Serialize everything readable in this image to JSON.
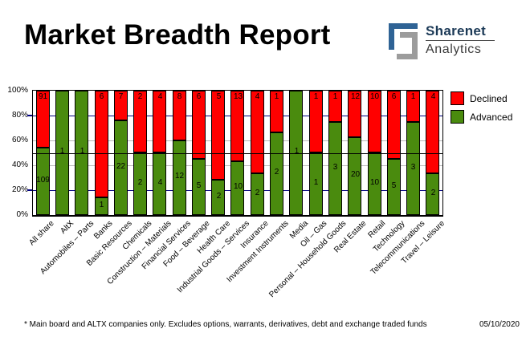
{
  "header": {
    "title": "Market Breadth Report",
    "logo": {
      "line1": "Sharenet",
      "line2": "Analytics",
      "icon_blue": "#2f6395",
      "icon_gray": "#9c9c9c"
    }
  },
  "chart_data": {
    "type": "bar",
    "variant": "stacked-100-percent-column",
    "categories": [
      "All share",
      "AltX",
      "Automobiles – Parts",
      "Banks",
      "Basic Resources",
      "Chemicals",
      "Construction – Materials",
      "Financial Services",
      "Food – Beverage",
      "Health Care",
      "Industrial Goods – Services",
      "Insurance",
      "Investment Instruments",
      "Media",
      "Oil – Gas",
      "Personal – Household Goods",
      "Real Estate",
      "Retail",
      "Technology",
      "Telecommunications",
      "Travel – Leisure"
    ],
    "series": [
      {
        "name": "Declined",
        "color": "#ff0000",
        "values": [
          91,
          0,
          0,
          6,
          7,
          2,
          4,
          8,
          6,
          5,
          13,
          4,
          1,
          0,
          1,
          1,
          12,
          10,
          6,
          1,
          4
        ]
      },
      {
        "name": "Advanced",
        "color": "#4a8b0e",
        "values": [
          109,
          1,
          1,
          1,
          22,
          2,
          4,
          12,
          5,
          2,
          10,
          2,
          2,
          1,
          1,
          3,
          20,
          10,
          5,
          3,
          2
        ]
      }
    ],
    "y_axis": {
      "ticks": [
        "0%",
        "20%",
        "40%",
        "60%",
        "80%",
        "100%"
      ],
      "range": [
        0,
        100
      ],
      "outer_ticks": [
        20,
        80
      ]
    },
    "gridlines": {
      "lines": [
        {
          "pct": 20,
          "color": "#000080"
        },
        {
          "pct": 40,
          "color": "#b8b8b8"
        },
        {
          "pct": 60,
          "color": "#b8b8b8"
        },
        {
          "pct": 80,
          "color": "#000080"
        }
      ],
      "mid": {
        "pct": 50,
        "color": "#000000"
      }
    },
    "legend_position": "top-right"
  },
  "footer": {
    "note": "* Main board and ALTX companies only. Excludes options, warrants, derivatives, debt and exchange traded funds",
    "date": "05/10/2020"
  }
}
